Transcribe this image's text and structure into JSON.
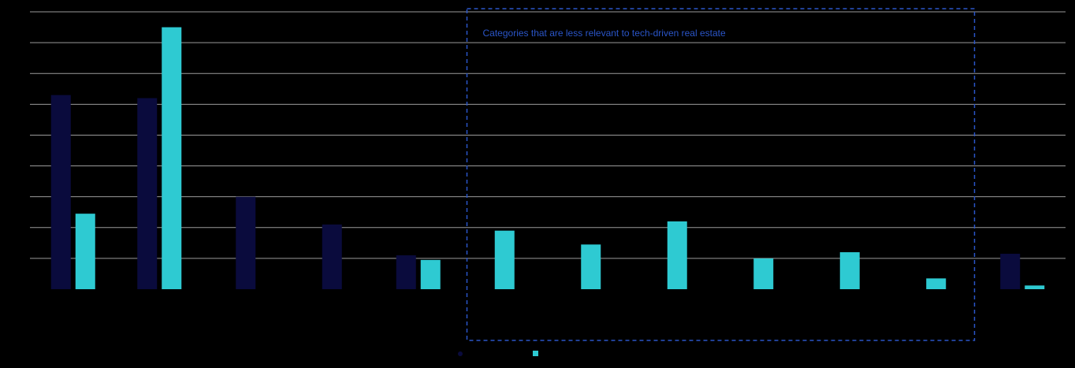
{
  "colors": {
    "series1": "#0a0b3d",
    "series2": "#2ecad2",
    "gridline": "#9a9a9a",
    "annotation": "#2a55c8"
  },
  "chart_data": {
    "type": "bar",
    "title": "",
    "xlabel": "",
    "ylabel": "",
    "ylim": [
      0,
      9
    ],
    "grid": true,
    "legend_position": "bottom-center",
    "categories": [
      "",
      "",
      "",
      "",
      "",
      "",
      "",
      "",
      "",
      "",
      "",
      ""
    ],
    "series": [
      {
        "name": "",
        "values": [
          6.3,
          6.2,
          3.0,
          2.1,
          1.1,
          null,
          null,
          null,
          null,
          null,
          null,
          1.15
        ]
      },
      {
        "name": "",
        "values": [
          2.45,
          8.5,
          null,
          null,
          0.95,
          1.9,
          1.45,
          2.2,
          1.0,
          1.2,
          0.35,
          0.12
        ]
      }
    ],
    "annotations": [
      {
        "text": "Categories that are less relevant to tech-driven real estate",
        "categories_span": [
          5,
          10
        ]
      }
    ]
  }
}
